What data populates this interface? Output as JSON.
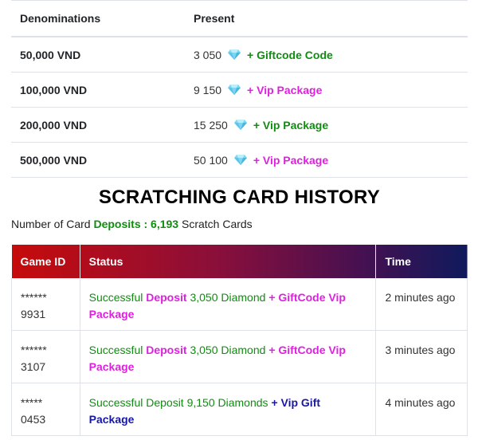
{
  "denominations": {
    "headers": [
      "Denominations",
      "Present"
    ],
    "rows": [
      {
        "denomination": "50,000 VND",
        "amount": "3 050",
        "bonus": "+ Giftcode Code",
        "bonus_color": "green"
      },
      {
        "denomination": "100,000 VND",
        "amount": "9 150",
        "bonus": "+ Vip Package",
        "bonus_color": "pink"
      },
      {
        "denomination": "200,000 VND",
        "amount": "15 250",
        "bonus": "+ Vip Package",
        "bonus_color": "green"
      },
      {
        "denomination": "500,000 VND",
        "amount": "50 100",
        "bonus": "+ Vip Package",
        "bonus_color": "pink"
      }
    ]
  },
  "history": {
    "title": "SCRATCHING CARD HISTORY",
    "count_prefix": "Number of Card ",
    "count_label": "Deposits : 6,193",
    "count_suffix": " Scratch Cards",
    "headers": [
      "Game ID",
      "Status",
      "Time"
    ],
    "rows": [
      {
        "id_mask": "******",
        "id_tail": "9931",
        "s1": "Successful ",
        "s2": "Deposit",
        "s3": " 3,050 Diamond ",
        "s4": "+ GiftCode Vip Package",
        "time": "2 minutes ago"
      },
      {
        "id_mask": "******",
        "id_tail": "3107",
        "s1": "Successful ",
        "s2": "Deposit",
        "s3": " 3,050 Diamond ",
        "s4": "+ GiftCode Vip Package",
        "time": "3 minutes ago"
      },
      {
        "id_mask": "*****",
        "id_tail": "0453",
        "s1": "Successful Deposit 9,150 Diamonds ",
        "s2": "",
        "s3": "",
        "s4": "+ Vip Gift Package",
        "time": "4 minutes ago"
      }
    ]
  },
  "colors": {
    "green": "#108d10",
    "pink": "#e020e0",
    "blue": "#1818a8",
    "header_gradient_start": "#c60b0b",
    "header_gradient_end": "#0f1a5c"
  },
  "icons": {
    "gem": "diamond-icon"
  }
}
